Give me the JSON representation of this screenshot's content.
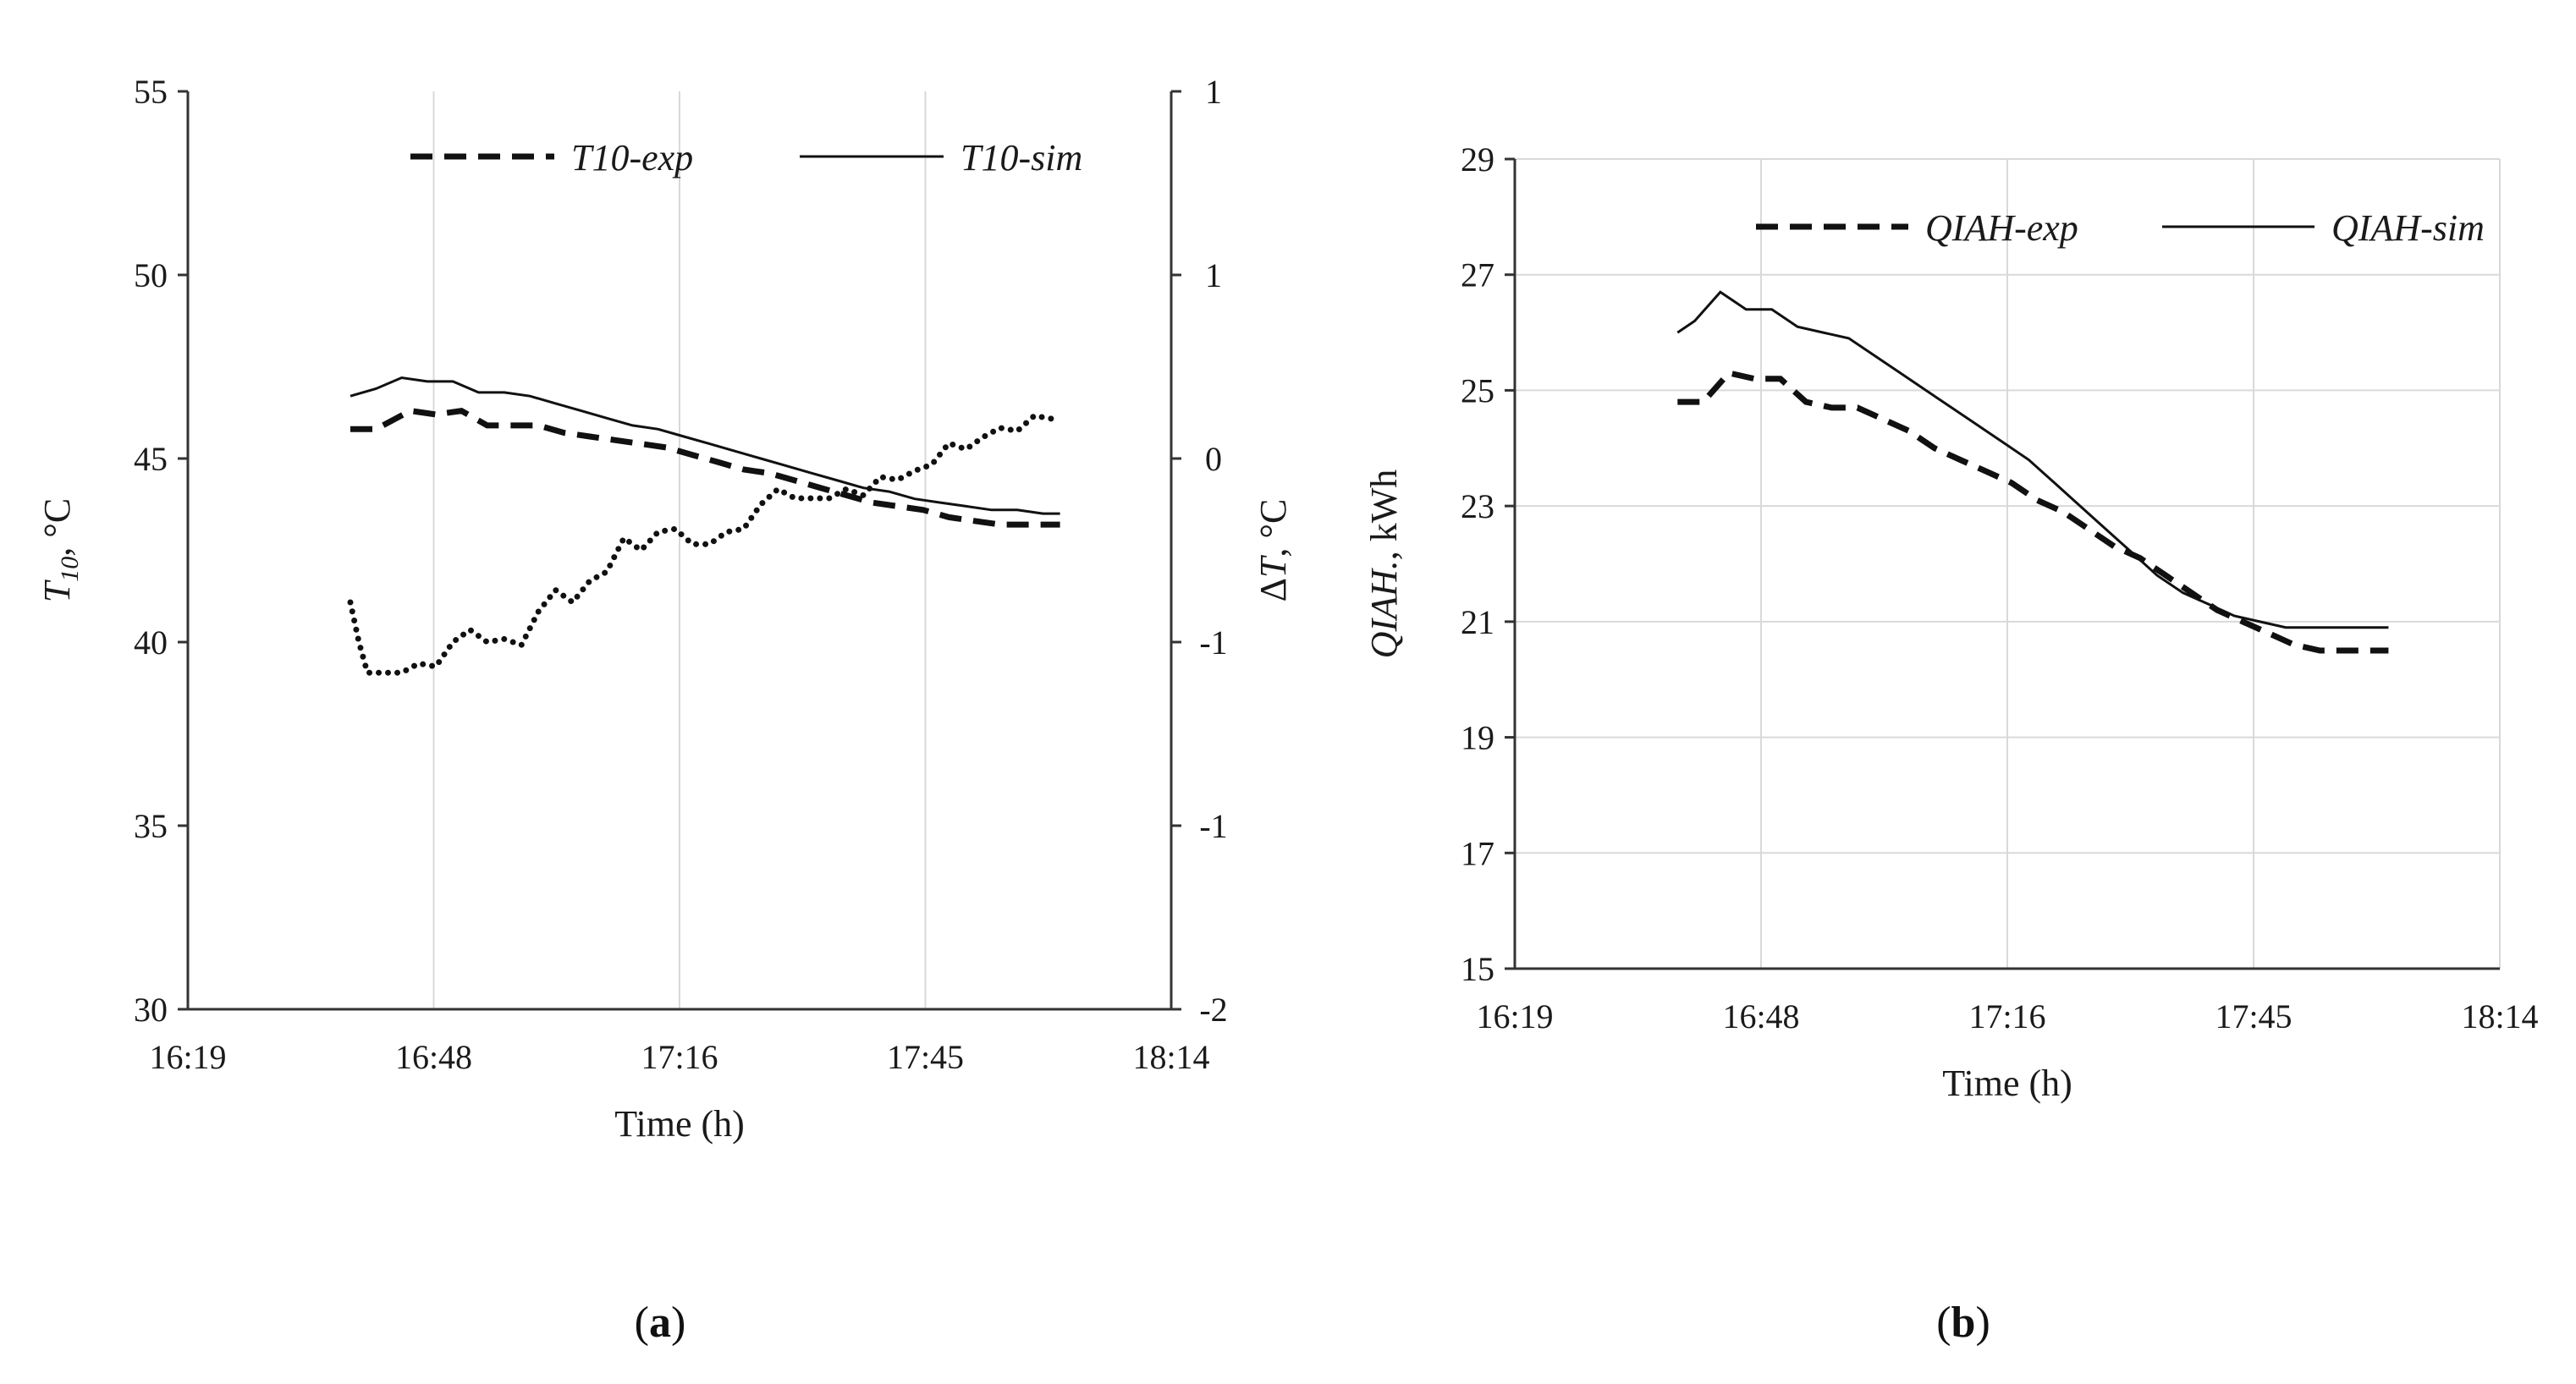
{
  "chart_data": [
    {
      "id": "a",
      "type": "line",
      "panel_label": "a",
      "xlabel": "Time (h)",
      "ylabel_left": "T10, °C",
      "ylabel_right": "ΔT, °C",
      "x_tick_labels": [
        "16:19",
        "16:48",
        "17:16",
        "17:45",
        "18:14"
      ],
      "xlim_min": [
        979,
        1094
      ],
      "ylim_left": [
        30,
        55
      ],
      "y_ticks_left": [
        30,
        35,
        40,
        45,
        50,
        55
      ],
      "ylim_right": [
        -2,
        1
      ],
      "y_tick_labels_right": [
        "1",
        "1",
        "0",
        "-1",
        "-1",
        "-2"
      ],
      "grid": "vertical",
      "legend_position": "top",
      "series": [
        {
          "name": "T10-exp",
          "style": "dashed",
          "axis": "left",
          "x": [
            998,
            1001,
            1005,
            1008,
            1011,
            1014,
            1017,
            1020,
            1023,
            1026,
            1029,
            1032,
            1035,
            1038,
            1041,
            1044,
            1047,
            1050,
            1053,
            1056,
            1059,
            1062,
            1065,
            1068,
            1071,
            1074,
            1077,
            1080,
            1081
          ],
          "y": [
            45.8,
            45.8,
            46.3,
            46.2,
            46.3,
            45.9,
            45.9,
            45.9,
            45.7,
            45.6,
            45.5,
            45.4,
            45.3,
            45.1,
            44.9,
            44.7,
            44.6,
            44.4,
            44.2,
            44.0,
            43.8,
            43.7,
            43.6,
            43.4,
            43.3,
            43.2,
            43.2,
            43.2,
            43.2
          ]
        },
        {
          "name": "T10-sim",
          "style": "solid",
          "axis": "left",
          "x": [
            998,
            1001,
            1004,
            1007,
            1010,
            1013,
            1016,
            1019,
            1022,
            1025,
            1028,
            1031,
            1034,
            1037,
            1040,
            1043,
            1046,
            1049,
            1052,
            1055,
            1058,
            1061,
            1064,
            1067,
            1070,
            1073,
            1076,
            1079,
            1081
          ],
          "y": [
            46.7,
            46.9,
            47.2,
            47.1,
            47.1,
            46.8,
            46.8,
            46.7,
            46.5,
            46.3,
            46.1,
            45.9,
            45.8,
            45.6,
            45.4,
            45.2,
            45.0,
            44.8,
            44.6,
            44.4,
            44.2,
            44.1,
            43.9,
            43.8,
            43.7,
            43.6,
            43.6,
            43.5,
            43.5
          ]
        },
        {
          "name": "ΔT",
          "style": "dotted",
          "axis": "right",
          "x": [
            998,
            999,
            1000,
            1002,
            1004,
            1006,
            1008,
            1010,
            1012,
            1014,
            1016,
            1018,
            1020,
            1022,
            1024,
            1026,
            1028,
            1030,
            1032,
            1034,
            1036,
            1038,
            1040,
            1042,
            1044,
            1046,
            1048,
            1050,
            1052,
            1054,
            1056,
            1058,
            1060,
            1062,
            1064,
            1066,
            1068,
            1070,
            1072,
            1074,
            1076,
            1078,
            1080,
            1081
          ],
          "y": [
            -0.67,
            -0.8,
            -0.9,
            -0.9,
            -0.9,
            -0.87,
            -0.88,
            -0.8,
            -0.76,
            -0.8,
            -0.79,
            -0.81,
            -0.7,
            -0.63,
            -0.67,
            -0.6,
            -0.57,
            -0.46,
            -0.5,
            -0.44,
            -0.43,
            -0.48,
            -0.48,
            -0.44,
            -0.43,
            -0.35,
            -0.3,
            -0.33,
            -0.33,
            -0.33,
            -0.3,
            -0.32,
            -0.26,
            -0.27,
            -0.24,
            -0.22,
            -0.15,
            -0.17,
            -0.13,
            -0.1,
            -0.11,
            -0.06,
            -0.07,
            -0.07
          ]
        }
      ]
    },
    {
      "id": "b",
      "type": "line",
      "panel_label": "b",
      "xlabel": "Time (h)",
      "ylabel": "QIAH., kWh",
      "x_tick_labels": [
        "16:19",
        "16:48",
        "17:16",
        "17:45",
        "18:14"
      ],
      "xlim_min": [
        979,
        1094
      ],
      "ylim": [
        15,
        29
      ],
      "y_ticks": [
        15,
        17,
        19,
        21,
        23,
        25,
        27,
        29
      ],
      "grid": "both",
      "legend_position": "top",
      "series": [
        {
          "name": "QIAH-exp",
          "style": "dashed",
          "x": [
            998,
            1001,
            1004,
            1007,
            1010,
            1013,
            1016,
            1019,
            1022,
            1025,
            1028,
            1031,
            1034,
            1037,
            1040,
            1043,
            1046,
            1049,
            1052,
            1055,
            1058,
            1061,
            1064,
            1067,
            1070,
            1073,
            1076,
            1079,
            1081
          ],
          "y": [
            24.8,
            24.8,
            25.3,
            25.2,
            25.2,
            24.8,
            24.7,
            24.7,
            24.5,
            24.3,
            24.0,
            23.8,
            23.6,
            23.4,
            23.1,
            22.9,
            22.6,
            22.3,
            22.1,
            21.8,
            21.5,
            21.2,
            21.0,
            20.8,
            20.6,
            20.5,
            20.5,
            20.5,
            20.5
          ]
        },
        {
          "name": "QIAH-sim",
          "style": "solid",
          "x": [
            998,
            1000,
            1003,
            1006,
            1009,
            1012,
            1015,
            1018,
            1021,
            1024,
            1027,
            1030,
            1033,
            1036,
            1039,
            1042,
            1045,
            1048,
            1051,
            1054,
            1057,
            1060,
            1063,
            1066,
            1069,
            1072,
            1075,
            1078,
            1081
          ],
          "y": [
            26.0,
            26.2,
            26.7,
            26.4,
            26.4,
            26.1,
            26.0,
            25.9,
            25.6,
            25.3,
            25.0,
            24.7,
            24.4,
            24.1,
            23.8,
            23.4,
            23.0,
            22.6,
            22.2,
            21.8,
            21.5,
            21.3,
            21.1,
            21.0,
            20.9,
            20.9,
            20.9,
            20.9,
            20.9
          ]
        }
      ]
    }
  ]
}
